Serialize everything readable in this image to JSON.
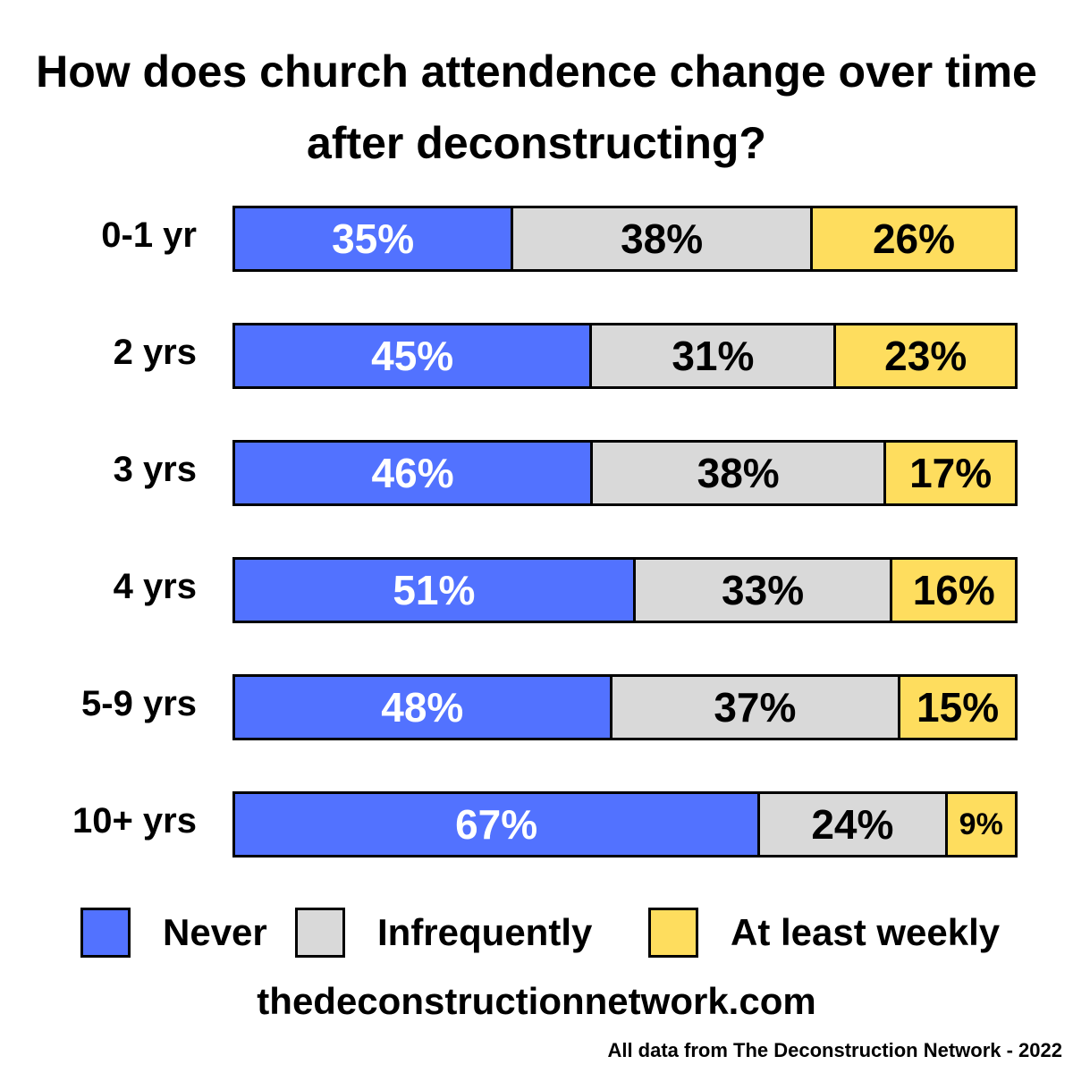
{
  "title": "How does church attendence change over time after deconstructing?",
  "chart_data": {
    "type": "bar",
    "orientation": "horizontal",
    "stacked": true,
    "title": "How does church attendence change over time after deconstructing?",
    "categories": [
      "0-1 yr",
      "2 yrs",
      "3 yrs",
      "4 yrs",
      "5-9 yrs",
      "10+ yrs"
    ],
    "series": [
      {
        "name": "Never",
        "color": "#5272ff",
        "text_color": "#ffffff",
        "values": [
          35,
          45,
          46,
          51,
          48,
          67
        ]
      },
      {
        "name": "Infrequently",
        "color": "#d9d9d9",
        "text_color": "#000000",
        "values": [
          38,
          31,
          38,
          33,
          37,
          24
        ]
      },
      {
        "name": "At least weekly",
        "color": "#fedd5e",
        "text_color": "#000000",
        "values": [
          26,
          23,
          17,
          16,
          15,
          9
        ]
      }
    ],
    "value_suffix": "%",
    "legend_position": "bottom"
  },
  "footer": {
    "website": "thedeconstructionnetwork.com",
    "source": "All data from The Deconstruction Network -  2022"
  }
}
